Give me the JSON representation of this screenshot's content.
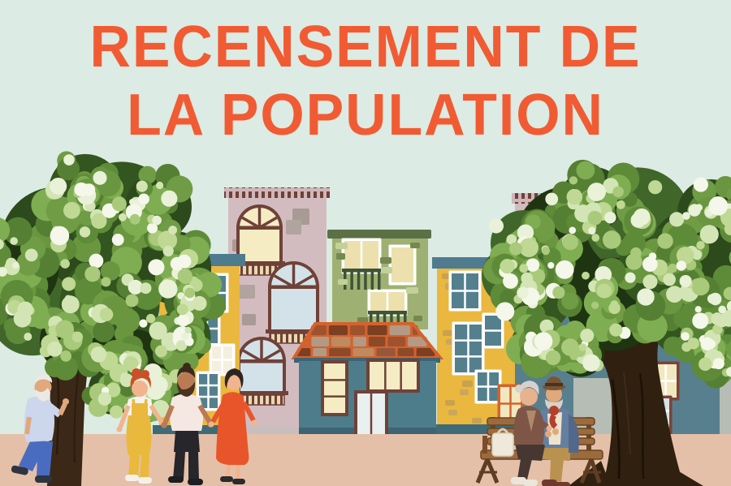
{
  "poster": {
    "title_line1": "RECENSEMENT DE",
    "title_line2": "LA POPULATION"
  },
  "palette": {
    "background": "#dcebe3",
    "title_text": "#f15b33",
    "ground": "#e5c0a8",
    "yellow_building": "#eab83f",
    "pink_building": "#d3bcc0",
    "green_building": "#9eb173",
    "teal_house": "#4d7d8b",
    "teal_building": "#587f8d",
    "roof_mortar_orange": "#d4622f",
    "window_frame_brown": "#6f4138",
    "window_pane_teal": "#54808e",
    "window_pane_cream": "#f2e8c0",
    "bench_wood": "#9c6b3c",
    "tree_trunk": "#3b2817",
    "foliage_dark": [
      "#33551f",
      "#2c4a1c",
      "#40662a",
      "#1f3512"
    ],
    "foliage_mid": [
      "#5d8b38",
      "#6f9c44",
      "#7fae52",
      "#558033",
      "#6a9640"
    ],
    "foliage_light": [
      "#a9c97b",
      "#bfd893",
      "#d3e5b4",
      "#e9f1d8",
      "#f4f7ea"
    ]
  },
  "scene": {
    "figures": [
      "elderly-man-standing-by-tree",
      "woman-yellow-overalls",
      "bearded-man-pink-shirt",
      "woman-orange-dress",
      "elderly-couple-on-bench"
    ],
    "objects": [
      "left-tree",
      "right-tree",
      "wooden-bench",
      "tote-bag",
      "pink-building",
      "yellow-building-left",
      "green-building",
      "teal-house",
      "yellow-building-right",
      "teal-building-right",
      "pink-building-far-right",
      "sidewalk"
    ]
  }
}
